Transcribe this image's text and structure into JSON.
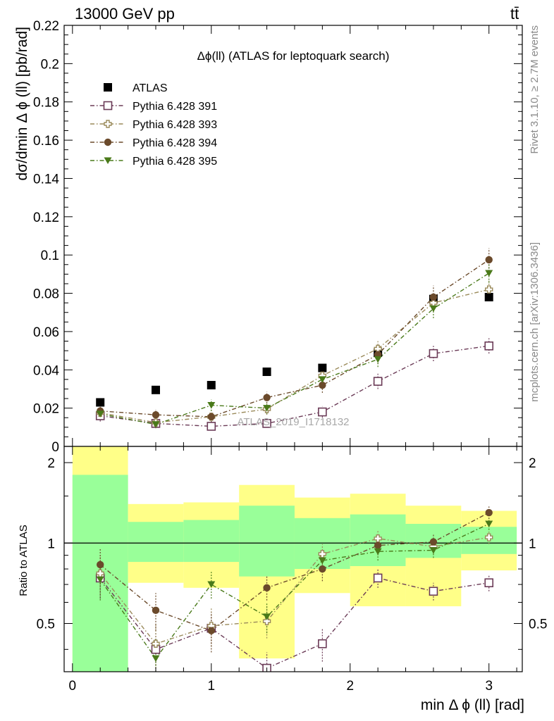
{
  "header": {
    "energy_label": "13000 GeV pp",
    "process_label": "tt̄"
  },
  "side_labels": {
    "rivet": "Rivet 3.1.10, ≥ 2.7M events",
    "mcplots": "mcplots.cern.ch [arXiv:1306.3436]"
  },
  "watermark": "ATLAS_2019_I1718132",
  "chart_data": [
    {
      "type": "scatter",
      "title": "Δϕ(ll) (ATLAS for leptoquark search)",
      "ylabel": "dσ/dmin Δ ϕ (ll) [pb/rad]",
      "xlim": [
        -0.06,
        3.24
      ],
      "ylim": [
        0,
        0.22
      ],
      "yticks": [
        0,
        0.02,
        0.04,
        0.06,
        0.08,
        0.1,
        0.12,
        0.14,
        0.16,
        0.18,
        0.2,
        0.22
      ],
      "ytick_labels": [
        "0",
        "0.02",
        "0.04",
        "0.06",
        "0.08",
        "0.1",
        "0.12",
        "0.14",
        "0.16",
        "0.18",
        "0.2",
        "0.22"
      ],
      "x": [
        0.2,
        0.6,
        1.0,
        1.4,
        1.8,
        2.2,
        2.6,
        3.0
      ],
      "series": [
        {
          "name": "ATLAS",
          "color": "#000000",
          "marker": "square-filled",
          "values": [
            0.023,
            0.0295,
            0.032,
            0.039,
            0.041,
            0.049,
            0.077,
            0.078
          ]
        },
        {
          "name": "Pythia 6.428 391",
          "color": "#6b3b57",
          "marker": "square-open",
          "values": [
            0.016,
            0.012,
            0.0105,
            0.012,
            0.018,
            0.034,
            0.0485,
            0.0525
          ],
          "errors": [
            0.003,
            0.002,
            0.002,
            0.002,
            0.003,
            0.004,
            0.004,
            0.004
          ]
        },
        {
          "name": "Pythia 6.428 393",
          "color": "#9a8a5a",
          "marker": "cross-open",
          "values": [
            0.0175,
            0.0125,
            0.0155,
            0.0195,
            0.037,
            0.051,
            0.075,
            0.082
          ],
          "errors": [
            0.003,
            0.003,
            0.003,
            0.003,
            0.004,
            0.004,
            0.005,
            0.005
          ]
        },
        {
          "name": "Pythia 6.428 394",
          "color": "#6b4a2b",
          "marker": "circle-filled",
          "values": [
            0.0185,
            0.0165,
            0.0155,
            0.0255,
            0.032,
            0.048,
            0.078,
            0.0975
          ],
          "errors": [
            0.003,
            0.003,
            0.003,
            0.003,
            0.004,
            0.005,
            0.006,
            0.006
          ]
        },
        {
          "name": "Pythia 6.428 395",
          "color": "#4a7a1a",
          "marker": "triangle-down-filled",
          "values": [
            0.017,
            0.0115,
            0.0215,
            0.02,
            0.035,
            0.0455,
            0.072,
            0.0905
          ],
          "errors": [
            0.003,
            0.002,
            0.003,
            0.003,
            0.004,
            0.004,
            0.005,
            0.005
          ]
        }
      ],
      "legend": {
        "placement": "top-left"
      }
    },
    {
      "type": "scatter",
      "xlabel": "min Δ ϕ (ll) [rad]",
      "ylabel": "Ratio to ATLAS",
      "xlim": [
        -0.06,
        3.24
      ],
      "ylim": [
        0.33,
        2.3
      ],
      "log_scale_y": true,
      "xticks": [
        0,
        1,
        2,
        3
      ],
      "xtick_labels": [
        "0",
        "1",
        "2",
        "3"
      ],
      "yticks": [
        0.5,
        1,
        2
      ],
      "ytick_labels": [
        "0.5",
        "1",
        "2"
      ],
      "reference_line": 1,
      "bands": {
        "bins": [
          [
            0,
            0.4
          ],
          [
            0.4,
            0.8
          ],
          [
            0.8,
            1.2
          ],
          [
            1.2,
            1.6
          ],
          [
            1.6,
            2.0
          ],
          [
            2.0,
            2.4
          ],
          [
            2.4,
            2.8
          ],
          [
            2.8,
            3.2
          ]
        ],
        "stat": [
          [
            0.3,
            1.8
          ],
          [
            0.85,
            1.2
          ],
          [
            0.85,
            1.22
          ],
          [
            0.75,
            1.38
          ],
          [
            0.8,
            1.24
          ],
          [
            0.82,
            1.28
          ],
          [
            0.88,
            1.18
          ],
          [
            0.91,
            1.15
          ]
        ],
        "total": [
          [
            0.3,
            2.5
          ],
          [
            0.71,
            1.4
          ],
          [
            0.68,
            1.42
          ],
          [
            0.37,
            1.65
          ],
          [
            0.65,
            1.48
          ],
          [
            0.58,
            1.53
          ],
          [
            0.58,
            1.38
          ],
          [
            0.79,
            1.32
          ]
        ],
        "stat_color": "#99ff99",
        "total_color": "#ffff88"
      },
      "x": [
        0.2,
        0.6,
        1.0,
        1.4,
        1.8,
        2.2,
        2.6,
        3.0
      ],
      "series": [
        {
          "name": "Pythia 6.428 391",
          "color": "#6b3b57",
          "marker": "square-open",
          "values": [
            0.74,
            0.4,
            0.48,
            0.34,
            0.42,
            0.74,
            0.66,
            0.71
          ],
          "errors": [
            0.12,
            0.06,
            0.06,
            0.05,
            0.06,
            0.06,
            0.05,
            0.05
          ]
        },
        {
          "name": "Pythia 6.428 393",
          "color": "#9a8a5a",
          "marker": "cross-open",
          "values": [
            0.77,
            0.42,
            0.49,
            0.51,
            0.91,
            1.04,
            0.97,
            1.05
          ],
          "errors": [
            0.13,
            0.08,
            0.08,
            0.07,
            0.08,
            0.07,
            0.06,
            0.06
          ]
        },
        {
          "name": "Pythia 6.428 394",
          "color": "#6b4a2b",
          "marker": "circle-filled",
          "values": [
            0.83,
            0.56,
            0.47,
            0.68,
            0.8,
            0.98,
            1.01,
            1.3
          ],
          "errors": [
            0.13,
            0.09,
            0.08,
            0.07,
            0.08,
            0.08,
            0.07,
            0.07
          ]
        },
        {
          "name": "Pythia 6.428 395",
          "color": "#4a7a1a",
          "marker": "triangle-down-filled",
          "values": [
            0.73,
            0.37,
            0.7,
            0.53,
            0.86,
            0.93,
            0.94,
            1.18
          ],
          "errors": [
            0.12,
            0.07,
            0.08,
            0.07,
            0.08,
            0.07,
            0.06,
            0.06
          ]
        }
      ]
    }
  ]
}
